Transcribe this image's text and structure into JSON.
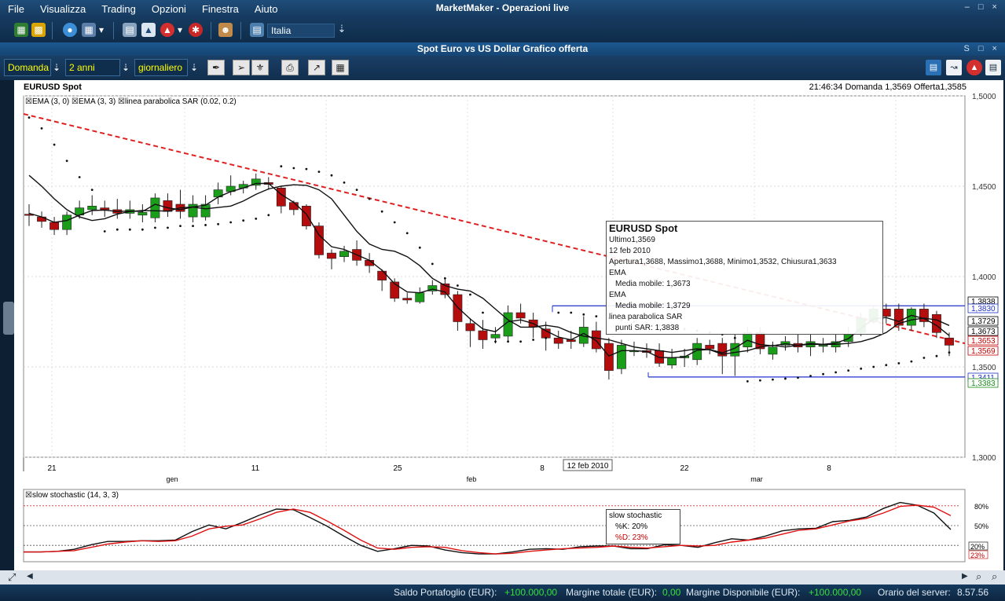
{
  "menubar": {
    "items": [
      "File",
      "Visualizza",
      "Trading",
      "Opzioni",
      "Finestra",
      "Aiuto"
    ],
    "title": "MarketMaker - Operazioni live"
  },
  "toolbar1": {
    "language": "Italia"
  },
  "chart_window": {
    "title": "Spot Euro vs US Dollar Grafico offerta",
    "price_type": "Domanda",
    "period": "2 anni",
    "interval": "giornaliero"
  },
  "chart_header": {
    "name": "EURUSD Spot",
    "info": "21:46:34  Domanda 1,3569  Offerta1,3585"
  },
  "legend": {
    "items": [
      "EMA (3, 0)",
      "EMA (3, 3)",
      "linea parabolica SAR (0.02, 0.2)"
    ]
  },
  "tooltip": {
    "title": "EURUSD Spot",
    "lines": [
      "Ultimo1,3569",
      "12 feb 2010",
      "Apertura1,3688, Massimo1,3688, Minimo1,3532, Chiusura1,3633",
      "EMA",
      "Media mobile: 1,3673",
      "EMA",
      "Media mobile: 1,3729",
      "linea parabolica SAR",
      "punti SAR: 1,3838"
    ]
  },
  "stochastic": {
    "label": "slow stochastic (14, 3, 3)",
    "tooltip_title": "slow stochastic",
    "k_text": "%K: 20%",
    "d_text": "%D: 23%",
    "axis_labels": [
      "80%",
      "50%"
    ],
    "k_badge": "20%",
    "d_badge": "23%",
    "k_values": [
      10,
      10,
      11,
      14,
      21,
      26,
      26,
      27,
      27,
      28,
      41,
      51,
      45,
      55,
      66,
      75,
      74,
      62,
      49,
      34,
      20,
      11,
      15,
      20,
      19,
      13,
      9,
      7,
      7,
      10,
      14,
      15,
      14,
      18,
      19,
      19,
      15,
      15,
      21,
      20,
      17,
      24,
      30,
      28,
      34,
      42,
      45,
      46,
      56,
      58,
      63,
      76,
      85,
      81,
      69,
      44
    ],
    "d_values": [
      10,
      10,
      11,
      12,
      17,
      22,
      25,
      27,
      26,
      27,
      34,
      45,
      49,
      51,
      60,
      70,
      75,
      70,
      57,
      43,
      28,
      16,
      14,
      17,
      18,
      17,
      12,
      9,
      7,
      8,
      11,
      13,
      15,
      16,
      17,
      19,
      17,
      16,
      18,
      20,
      19,
      20,
      25,
      28,
      31,
      37,
      43,
      45,
      51,
      57,
      61,
      69,
      79,
      81,
      78,
      65
    ]
  },
  "axis": {
    "price_ticks": [
      "1,5000",
      "1,4500",
      "1,4000",
      "1,3500",
      "1,3000"
    ],
    "date_labels": [
      "21",
      "gen",
      "11",
      "25",
      "feb",
      "8",
      "22",
      "mar",
      "8"
    ],
    "crosshair_date": "12 feb 2010",
    "price_badges": [
      {
        "text": "1,3838",
        "color": "#000000"
      },
      {
        "text": "1,3830",
        "color": "#1f33c8"
      },
      {
        "text": "1,3729",
        "color": "#000000"
      },
      {
        "text": "1,3673",
        "color": "#000000"
      },
      {
        "text": "1,3653",
        "color": "#c00000"
      },
      {
        "text": "1,3569",
        "color": "#c00000"
      },
      {
        "text": "1,3411",
        "color": "#1f33c8"
      },
      {
        "text": "1,3383",
        "color": "#1b8a1b"
      }
    ]
  },
  "chart_data": {
    "type": "candlestick",
    "title": "EURUSD Spot",
    "ylim": [
      1.3,
      1.5
    ],
    "x_date_labels": [
      "21",
      "gen",
      "11",
      "25",
      "feb",
      "8",
      "22",
      "mar",
      "8"
    ],
    "candles": [
      {
        "o": 1.4345,
        "c": 1.434,
        "h": 1.44,
        "l": 1.428
      },
      {
        "o": 1.433,
        "c": 1.4305,
        "h": 1.436,
        "l": 1.427
      },
      {
        "o": 1.43,
        "c": 1.426,
        "h": 1.433,
        "l": 1.423
      },
      {
        "o": 1.426,
        "c": 1.434,
        "h": 1.436,
        "l": 1.423
      },
      {
        "o": 1.434,
        "c": 1.438,
        "h": 1.442,
        "l": 1.432
      },
      {
        "o": 1.437,
        "c": 1.439,
        "h": 1.445,
        "l": 1.434
      },
      {
        "o": 1.438,
        "c": 1.437,
        "h": 1.442,
        "l": 1.433
      },
      {
        "o": 1.437,
        "c": 1.435,
        "h": 1.443,
        "l": 1.432
      },
      {
        "o": 1.435,
        "c": 1.437,
        "h": 1.442,
        "l": 1.432
      },
      {
        "o": 1.434,
        "c": 1.4355,
        "h": 1.44,
        "l": 1.43
      },
      {
        "o": 1.4325,
        "c": 1.4435,
        "h": 1.446,
        "l": 1.43
      },
      {
        "o": 1.442,
        "c": 1.436,
        "h": 1.446,
        "l": 1.433
      },
      {
        "o": 1.44,
        "c": 1.436,
        "h": 1.448,
        "l": 1.432
      },
      {
        "o": 1.433,
        "c": 1.44,
        "h": 1.445,
        "l": 1.43
      },
      {
        "o": 1.433,
        "c": 1.44,
        "h": 1.445,
        "l": 1.431
      },
      {
        "o": 1.444,
        "c": 1.448,
        "h": 1.452,
        "l": 1.44
      },
      {
        "o": 1.447,
        "c": 1.45,
        "h": 1.456,
        "l": 1.445
      },
      {
        "o": 1.449,
        "c": 1.451,
        "h": 1.453,
        "l": 1.446
      },
      {
        "o": 1.4505,
        "c": 1.454,
        "h": 1.457,
        "l": 1.448
      },
      {
        "o": 1.452,
        "c": 1.451,
        "h": 1.455,
        "l": 1.448
      },
      {
        "o": 1.449,
        "c": 1.439,
        "h": 1.45,
        "l": 1.435
      },
      {
        "o": 1.441,
        "c": 1.437,
        "h": 1.442,
        "l": 1.434
      },
      {
        "o": 1.439,
        "c": 1.428,
        "h": 1.44,
        "l": 1.426
      },
      {
        "o": 1.428,
        "c": 1.412,
        "h": 1.43,
        "l": 1.41
      },
      {
        "o": 1.413,
        "c": 1.41,
        "h": 1.415,
        "l": 1.404
      },
      {
        "o": 1.411,
        "c": 1.414,
        "h": 1.417,
        "l": 1.408
      },
      {
        "o": 1.415,
        "c": 1.409,
        "h": 1.42,
        "l": 1.406
      },
      {
        "o": 1.409,
        "c": 1.406,
        "h": 1.413,
        "l": 1.402
      },
      {
        "o": 1.403,
        "c": 1.398,
        "h": 1.404,
        "l": 1.392
      },
      {
        "o": 1.397,
        "c": 1.388,
        "h": 1.399,
        "l": 1.386
      },
      {
        "o": 1.388,
        "c": 1.387,
        "h": 1.391,
        "l": 1.385
      },
      {
        "o": 1.386,
        "c": 1.391,
        "h": 1.394,
        "l": 1.385
      },
      {
        "o": 1.392,
        "c": 1.395,
        "h": 1.398,
        "l": 1.39
      },
      {
        "o": 1.396,
        "c": 1.39,
        "h": 1.399,
        "l": 1.388
      },
      {
        "o": 1.39,
        "c": 1.375,
        "h": 1.392,
        "l": 1.37
      },
      {
        "o": 1.374,
        "c": 1.37,
        "h": 1.377,
        "l": 1.361
      },
      {
        "o": 1.37,
        "c": 1.365,
        "h": 1.376,
        "l": 1.36
      },
      {
        "o": 1.366,
        "c": 1.368,
        "h": 1.372,
        "l": 1.363
      },
      {
        "o": 1.367,
        "c": 1.38,
        "h": 1.384,
        "l": 1.364
      },
      {
        "o": 1.38,
        "c": 1.377,
        "h": 1.385,
        "l": 1.374
      },
      {
        "o": 1.376,
        "c": 1.372,
        "h": 1.38,
        "l": 1.366
      },
      {
        "o": 1.371,
        "c": 1.366,
        "h": 1.375,
        "l": 1.359
      },
      {
        "o": 1.366,
        "c": 1.363,
        "h": 1.37,
        "l": 1.36
      },
      {
        "o": 1.365,
        "c": 1.364,
        "h": 1.37,
        "l": 1.36
      },
      {
        "o": 1.363,
        "c": 1.372,
        "h": 1.378,
        "l": 1.361
      },
      {
        "o": 1.37,
        "c": 1.36,
        "h": 1.375,
        "l": 1.358
      },
      {
        "o": 1.363,
        "c": 1.348,
        "h": 1.366,
        "l": 1.343
      },
      {
        "o": 1.349,
        "c": 1.362,
        "h": 1.365,
        "l": 1.346
      },
      {
        "o": 1.359,
        "c": 1.359,
        "h": 1.364,
        "l": 1.356
      },
      {
        "o": 1.359,
        "c": 1.358,
        "h": 1.363,
        "l": 1.355
      },
      {
        "o": 1.359,
        "c": 1.352,
        "h": 1.363,
        "l": 1.35
      },
      {
        "o": 1.351,
        "c": 1.355,
        "h": 1.36,
        "l": 1.349
      },
      {
        "o": 1.355,
        "c": 1.356,
        "h": 1.36,
        "l": 1.35
      },
      {
        "o": 1.354,
        "c": 1.363,
        "h": 1.366,
        "l": 1.351
      },
      {
        "o": 1.362,
        "c": 1.36,
        "h": 1.365,
        "l": 1.357
      },
      {
        "o": 1.363,
        "c": 1.356,
        "h": 1.366,
        "l": 1.346
      },
      {
        "o": 1.356,
        "c": 1.363,
        "h": 1.368,
        "l": 1.345
      },
      {
        "o": 1.361,
        "c": 1.369,
        "h": 1.372,
        "l": 1.358
      },
      {
        "o": 1.369,
        "c": 1.36,
        "h": 1.372,
        "l": 1.357
      },
      {
        "o": 1.357,
        "c": 1.361,
        "h": 1.364,
        "l": 1.354
      },
      {
        "o": 1.362,
        "c": 1.364,
        "h": 1.367,
        "l": 1.359
      },
      {
        "o": 1.363,
        "c": 1.361,
        "h": 1.368,
        "l": 1.358
      },
      {
        "o": 1.361,
        "c": 1.364,
        "h": 1.368,
        "l": 1.356
      },
      {
        "o": 1.362,
        "c": 1.362,
        "h": 1.366,
        "l": 1.358
      },
      {
        "o": 1.361,
        "c": 1.364,
        "h": 1.368,
        "l": 1.358
      },
      {
        "o": 1.364,
        "c": 1.368,
        "h": 1.372,
        "l": 1.361
      },
      {
        "o": 1.369,
        "c": 1.377,
        "h": 1.38,
        "l": 1.367
      },
      {
        "o": 1.375,
        "c": 1.382,
        "h": 1.384,
        "l": 1.374
      },
      {
        "o": 1.382,
        "c": 1.378,
        "h": 1.385,
        "l": 1.374
      },
      {
        "o": 1.382,
        "c": 1.373,
        "h": 1.385,
        "l": 1.37
      },
      {
        "o": 1.373,
        "c": 1.382,
        "h": 1.383,
        "l": 1.37
      },
      {
        "o": 1.382,
        "c": 1.375,
        "h": 1.385,
        "l": 1.372
      },
      {
        "o": 1.379,
        "c": 1.369,
        "h": 1.381,
        "l": 1.366
      },
      {
        "o": 1.366,
        "c": 1.362,
        "h": 1.369,
        "l": 1.356
      }
    ],
    "ema_a": [
      1.435,
      1.433,
      1.43,
      1.431,
      1.434,
      1.4365,
      1.4368,
      1.436,
      1.4362,
      1.436,
      1.44,
      1.438,
      1.437,
      1.4385,
      1.4395,
      1.444,
      1.447,
      1.449,
      1.4515,
      1.4515,
      1.4455,
      1.441,
      1.4345,
      1.423,
      1.4165,
      1.415,
      1.412,
      1.409,
      1.4035,
      1.396,
      1.3915,
      1.391,
      1.393,
      1.3915,
      1.383,
      1.3765,
      1.371,
      1.3695,
      1.375,
      1.376,
      1.374,
      1.37,
      1.3665,
      1.365,
      1.3685,
      1.3645,
      1.356,
      1.359,
      1.359,
      1.3585,
      1.3552,
      1.3551,
      1.3555,
      1.3592,
      1.3596,
      1.3578,
      1.3604,
      1.3647,
      1.3623,
      1.3617,
      1.3628,
      1.3619,
      1.363,
      1.3625,
      1.3632,
      1.3656,
      1.3713,
      1.3766,
      1.3773,
      1.3751,
      1.3785,
      1.3768,
      1.3729,
      1.3673
    ],
    "ema_b": [
      1.456,
      1.45,
      1.443,
      1.437,
      1.433,
      1.431,
      1.432,
      1.4345,
      1.436,
      1.4365,
      1.4364,
      1.4362,
      1.438,
      1.4385,
      1.4375,
      1.4382,
      1.439,
      1.4418,
      1.4455,
      1.4485,
      1.45,
      1.4508,
      1.4505,
      1.448,
      1.443,
      1.434,
      1.425,
      1.418,
      1.415,
      1.414,
      1.411,
      1.406,
      1.399,
      1.395,
      1.393,
      1.392,
      1.388,
      1.382,
      1.376,
      1.372,
      1.372,
      1.373,
      1.372,
      1.369,
      1.367,
      1.366,
      1.365,
      1.363,
      1.361,
      1.36,
      1.359,
      1.358,
      1.359,
      1.36,
      1.3595,
      1.357,
      1.358,
      1.359,
      1.361,
      1.362,
      1.361,
      1.362,
      1.3625,
      1.3625,
      1.3625,
      1.363,
      1.364,
      1.366,
      1.369,
      1.374,
      1.376,
      1.377,
      1.376,
      1.3729
    ],
    "sar": [
      1.488,
      1.482,
      1.473,
      1.464,
      1.455,
      1.448,
      1.425,
      1.426,
      1.426,
      1.426,
      1.427,
      1.427,
      1.428,
      1.428,
      1.4285,
      1.429,
      1.43,
      1.431,
      1.432,
      1.434,
      1.461,
      1.46,
      1.4595,
      1.458,
      1.456,
      1.452,
      1.448,
      1.443,
      1.436,
      1.43,
      1.424,
      1.416,
      1.407,
      1.399,
      1.395,
      1.39,
      1.38,
      1.364,
      1.364,
      1.364,
      1.365,
      1.366,
      1.38,
      1.38,
      1.379,
      1.378,
      1.377,
      1.376,
      1.375,
      1.374,
      1.373,
      1.372,
      1.371,
      1.37,
      1.369,
      1.368,
      1.366,
      1.342,
      1.3425,
      1.343,
      1.3435,
      1.344,
      1.345,
      1.346,
      1.347,
      1.348,
      1.349,
      1.35,
      1.351,
      1.352,
      1.353,
      1.355,
      1.356,
      1.358
    ],
    "trendline": {
      "start": 1.49,
      "end": 1.363
    },
    "channel": {
      "upper": 1.3838,
      "lower": 1.3444
    }
  },
  "statusbar": {
    "saldo_label": "Saldo Portafoglio (EUR):",
    "saldo_value": "+100.000,00",
    "margine_label": "Margine totale (EUR):",
    "margine_value": "0,00",
    "disp_label": "Margine Disponibile (EUR):",
    "disp_value": "+100.000,00",
    "orario_label": "Orario del server:",
    "orario_value": "8.57.56"
  }
}
